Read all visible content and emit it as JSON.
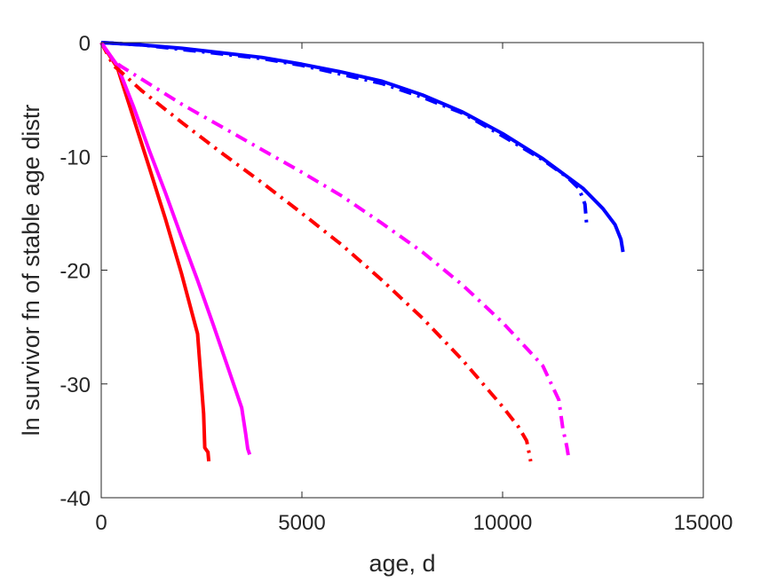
{
  "chart_data": {
    "type": "line",
    "xlabel": "age, d",
    "ylabel": "ln survivor fn of stable age distr",
    "xlim": [
      0,
      15000
    ],
    "ylim": [
      -40,
      0
    ],
    "xticks": [
      0,
      5000,
      10000,
      15000
    ],
    "yticks": [
      0,
      -10,
      -20,
      -30,
      -40
    ],
    "xtick_labels": [
      "0",
      "5000",
      "10000",
      "15000"
    ],
    "ytick_labels": [
      "0",
      "-10",
      "-20",
      "-30",
      "-40"
    ],
    "grid": false,
    "legend": "none",
    "series": [
      {
        "color": "#0000ff",
        "style": "solid",
        "points": [
          [
            0,
            0
          ],
          [
            1000,
            -0.2
          ],
          [
            2000,
            -0.5
          ],
          [
            3000,
            -0.9
          ],
          [
            4000,
            -1.3
          ],
          [
            5000,
            -1.9
          ],
          [
            6000,
            -2.6
          ],
          [
            7000,
            -3.4
          ],
          [
            8000,
            -4.6
          ],
          [
            9000,
            -6.1
          ],
          [
            10000,
            -8.0
          ],
          [
            11000,
            -10.2
          ],
          [
            12000,
            -12.8
          ],
          [
            12500,
            -14.6
          ],
          [
            12800,
            -16.0
          ],
          [
            12950,
            -17.3
          ],
          [
            13000,
            -18.4
          ]
        ]
      },
      {
        "color": "#0000ff",
        "style": "dashdot",
        "points": [
          [
            0,
            0
          ],
          [
            1000,
            -0.2
          ],
          [
            2000,
            -0.6
          ],
          [
            3000,
            -1.0
          ],
          [
            4000,
            -1.4
          ],
          [
            5000,
            -2.0
          ],
          [
            6000,
            -2.8
          ],
          [
            7000,
            -3.6
          ],
          [
            8000,
            -4.8
          ],
          [
            9000,
            -6.2
          ],
          [
            10000,
            -8.2
          ],
          [
            11000,
            -10.3
          ],
          [
            11600,
            -11.8
          ],
          [
            11900,
            -12.8
          ],
          [
            12050,
            -14.2
          ],
          [
            12100,
            -16.2
          ]
        ]
      },
      {
        "color": "#ff0000",
        "style": "solid",
        "points": [
          [
            0,
            0
          ],
          [
            400,
            -2.2
          ],
          [
            800,
            -6.6
          ],
          [
            1200,
            -11.0
          ],
          [
            1600,
            -15.5
          ],
          [
            2000,
            -20.3
          ],
          [
            2400,
            -25.6
          ],
          [
            2550,
            -32.6
          ],
          [
            2580,
            -35.6
          ],
          [
            2660,
            -36.0
          ],
          [
            2680,
            -36.8
          ]
        ]
      },
      {
        "color": "#ff00ff",
        "style": "solid",
        "points": [
          [
            0,
            0
          ],
          [
            400,
            -2.0
          ],
          [
            800,
            -5.6
          ],
          [
            1200,
            -9.5
          ],
          [
            1600,
            -13.2
          ],
          [
            2000,
            -17.1
          ],
          [
            2400,
            -20.9
          ],
          [
            2800,
            -24.9
          ],
          [
            3200,
            -29.0
          ],
          [
            3500,
            -32.1
          ],
          [
            3600,
            -34.4
          ],
          [
            3650,
            -35.7
          ],
          [
            3700,
            -36.2
          ]
        ]
      },
      {
        "color": "#ff0000",
        "style": "dashdot",
        "points": [
          [
            0,
            0
          ],
          [
            300,
            -2.0
          ],
          [
            500,
            -2.6
          ],
          [
            1000,
            -4.2
          ],
          [
            2000,
            -7.0
          ],
          [
            3000,
            -9.7
          ],
          [
            4000,
            -12.3
          ],
          [
            5000,
            -15.0
          ],
          [
            6000,
            -17.8
          ],
          [
            7000,
            -20.9
          ],
          [
            8000,
            -24.2
          ],
          [
            9000,
            -27.9
          ],
          [
            10000,
            -32.0
          ],
          [
            10400,
            -33.8
          ],
          [
            10600,
            -35.0
          ],
          [
            10650,
            -35.9
          ],
          [
            10700,
            -36.8
          ]
        ]
      },
      {
        "color": "#ff00ff",
        "style": "dashdot",
        "points": [
          [
            0,
            0
          ],
          [
            300,
            -1.6
          ],
          [
            500,
            -2.1
          ],
          [
            1000,
            -3.2
          ],
          [
            2000,
            -5.4
          ],
          [
            3000,
            -7.4
          ],
          [
            4000,
            -9.4
          ],
          [
            5000,
            -11.4
          ],
          [
            6000,
            -13.5
          ],
          [
            7000,
            -15.9
          ],
          [
            8000,
            -18.4
          ],
          [
            9000,
            -21.3
          ],
          [
            10000,
            -24.6
          ],
          [
            11000,
            -28.4
          ],
          [
            11400,
            -31.4
          ],
          [
            11500,
            -33.9
          ],
          [
            11600,
            -35.5
          ],
          [
            11650,
            -36.6
          ]
        ]
      }
    ]
  }
}
